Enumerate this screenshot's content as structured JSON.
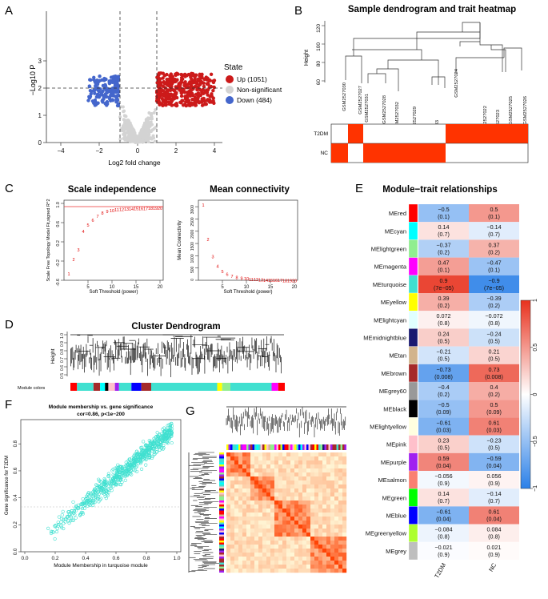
{
  "panels": {
    "a": {
      "letter": "A",
      "ylabel": "−Log10 P",
      "xlabel": "Log2 fold change",
      "xticks": [
        "−4",
        "−2",
        "0",
        "2",
        "4"
      ],
      "yticks": [
        "0",
        "1",
        "2",
        "3"
      ],
      "legend_title": "State",
      "legend": [
        {
          "label": "Up (1051)",
          "color": "#cc1a1a"
        },
        {
          "label": "Non-significant",
          "color": "#d3d3d3"
        },
        {
          "label": "Down (484)",
          "color": "#4466cc"
        }
      ]
    },
    "b": {
      "letter": "B",
      "title": "Sample dendrogram and trait heatmap",
      "ylabel": "Height",
      "yticks": [
        "120",
        "100",
        "80",
        "60"
      ],
      "samples": [
        "GSM2527030",
        "GSM2527027",
        "GSM2527031",
        "GSM2527028",
        "GSM2527032",
        "GSM2527029",
        "GSM2527033",
        "GSM2527024",
        "GSM2527022",
        "GSM2527023",
        "GSM2527025",
        "GSM2527026"
      ],
      "traits": [
        "T2DM",
        "NC"
      ]
    },
    "c": {
      "letter": "C",
      "title1": "Scale independence",
      "title2": "Mean connectivity",
      "ylabel1": "Scale Free Topology Model Fit,signed R^2",
      "ylabel2": "Mean Connectivity",
      "xlabel": "Soft Threshold (power)",
      "yticks1": [
        "-0.6",
        "-0.2",
        "0.2",
        "0.6",
        "1.0"
      ],
      "yticks2": [
        "0",
        "500",
        "1000",
        "1500",
        "2000",
        "2500",
        "3000"
      ],
      "xticks": [
        "5",
        "10",
        "15",
        "20"
      ]
    },
    "d": {
      "letter": "D",
      "title": "Cluster Dendrogram",
      "ylabel": "Height",
      "yticks": [
        "0.5",
        "0.6",
        "0.7",
        "0.8",
        "0.9",
        "1.0"
      ],
      "module_label": "Module colors"
    },
    "e": {
      "letter": "E",
      "title": "Module−trait relationships",
      "columns": [
        "T2DM",
        "NC"
      ],
      "scale_ticks": [
        "1",
        "0.5",
        "0",
        "−0.5",
        "−1"
      ]
    },
    "f": {
      "letter": "F",
      "title": "Module membership vs. gene significance",
      "subtitle": "cor=0.86, p<1e−200",
      "xlabel": "Module Membership in turquoise module",
      "ylabel": "Gene significance for T2DM",
      "xticks": [
        "0.0",
        "0.2",
        "0.4",
        "0.6",
        "0.8",
        "1.0"
      ],
      "yticks": [
        "0.0",
        "0.2",
        "0.4",
        "0.6",
        "0.8"
      ]
    },
    "g": {
      "letter": "G"
    }
  },
  "chart_data": [
    {
      "type": "table",
      "title": "Module−trait relationships",
      "columns": [
        "T2DM",
        "NC"
      ],
      "rows": [
        {
          "module": "MEred",
          "color": "#ff0000",
          "t2dm": "−0.5",
          "t2dm_p": "(0.1)",
          "nc": "0.5",
          "nc_p": "(0.1)",
          "v": -0.5
        },
        {
          "module": "MEcyan",
          "color": "#00ffff",
          "t2dm": "0.14",
          "t2dm_p": "(0.7)",
          "nc": "−0.14",
          "nc_p": "(0.7)",
          "v": 0.14
        },
        {
          "module": "MElightgreen",
          "color": "#90ee90",
          "t2dm": "−0.37",
          "t2dm_p": "(0.2)",
          "nc": "0.37",
          "nc_p": "(0.2)",
          "v": -0.37
        },
        {
          "module": "MEmagenta",
          "color": "#ff00ff",
          "t2dm": "0.47",
          "t2dm_p": "(0.1)",
          "nc": "−0.47",
          "nc_p": "(0.1)",
          "v": 0.47
        },
        {
          "module": "MEturquoise",
          "color": "#40e0d0",
          "t2dm": "0.9",
          "t2dm_p": "(7e−05)",
          "nc": "−0.9",
          "nc_p": "(7e−05)",
          "v": 0.9
        },
        {
          "module": "MEyellow",
          "color": "#ffff00",
          "t2dm": "0.39",
          "t2dm_p": "(0.2)",
          "nc": "−0.39",
          "nc_p": "(0.2)",
          "v": 0.39
        },
        {
          "module": "MElightcyan",
          "color": "#e0ffff",
          "t2dm": "0.072",
          "t2dm_p": "(0.8)",
          "nc": "−0.072",
          "nc_p": "(0.8)",
          "v": 0.072
        },
        {
          "module": "MEmidnightblue",
          "color": "#191970",
          "t2dm": "0.24",
          "t2dm_p": "(0.5)",
          "nc": "−0.24",
          "nc_p": "(0.5)",
          "v": 0.24
        },
        {
          "module": "MEtan",
          "color": "#d2b48c",
          "t2dm": "−0.21",
          "t2dm_p": "(0.5)",
          "nc": "0.21",
          "nc_p": "(0.5)",
          "v": -0.21
        },
        {
          "module": "MEbrown",
          "color": "#a52a2a",
          "t2dm": "−0.73",
          "t2dm_p": "(0.008)",
          "nc": "0.73",
          "nc_p": "(0.008)",
          "v": -0.73
        },
        {
          "module": "MEgrey60",
          "color": "#999999",
          "t2dm": "−0.4",
          "t2dm_p": "(0.2)",
          "nc": "0.4",
          "nc_p": "(0.2)",
          "v": -0.4
        },
        {
          "module": "MEblack",
          "color": "#000000",
          "t2dm": "−0.5",
          "t2dm_p": "(0.09)",
          "nc": "0.5",
          "nc_p": "(0.09)",
          "v": -0.5
        },
        {
          "module": "MElightyellow",
          "color": "#ffffe0",
          "t2dm": "−0.61",
          "t2dm_p": "(0.03)",
          "nc": "0.61",
          "nc_p": "(0.03)",
          "v": -0.61
        },
        {
          "module": "MEpink",
          "color": "#ffc0cb",
          "t2dm": "0.23",
          "t2dm_p": "(0.5)",
          "nc": "−0.23",
          "nc_p": "(0.5)",
          "v": 0.23
        },
        {
          "module": "MEpurple",
          "color": "#a020f0",
          "t2dm": "0.59",
          "t2dm_p": "(0.04)",
          "nc": "−0.59",
          "nc_p": "(0.04)",
          "v": 0.59
        },
        {
          "module": "MEsalmon",
          "color": "#fa8072",
          "t2dm": "−0.056",
          "t2dm_p": "(0.9)",
          "nc": "0.056",
          "nc_p": "(0.9)",
          "v": -0.056
        },
        {
          "module": "MEgreen",
          "color": "#00ff00",
          "t2dm": "0.14",
          "t2dm_p": "(0.7)",
          "nc": "−0.14",
          "nc_p": "(0.7)",
          "v": 0.14
        },
        {
          "module": "MEblue",
          "color": "#0000ff",
          "t2dm": "−0.61",
          "t2dm_p": "(0.04)",
          "nc": "0.61",
          "nc_p": "(0.04)",
          "v": -0.61
        },
        {
          "module": "MEgreenyellow",
          "color": "#adff2f",
          "t2dm": "−0.084",
          "t2dm_p": "(0.8)",
          "nc": "0.084",
          "nc_p": "(0.8)",
          "v": -0.084
        },
        {
          "module": "MEgrey",
          "color": "#bebebe",
          "t2dm": "−0.021",
          "t2dm_p": "(0.9)",
          "nc": "0.021",
          "nc_p": "(0.9)",
          "v": -0.021
        }
      ]
    },
    {
      "type": "scatter",
      "title": "Scale independence",
      "x": [
        1,
        2,
        3,
        4,
        5,
        6,
        7,
        8,
        9,
        10,
        11,
        12,
        13,
        14,
        15,
        16,
        17,
        18,
        19,
        20
      ],
      "values": [
        -0.5,
        -0.2,
        0.0,
        0.38,
        0.52,
        0.62,
        0.7,
        0.77,
        0.8,
        0.82,
        0.83,
        0.84,
        0.85,
        0.85,
        0.86,
        0.86,
        0.86,
        0.87,
        0.87,
        0.87
      ],
      "ylim": [
        -0.6,
        1.0
      ],
      "xlim": [
        0,
        20
      ],
      "threshold": 0.85
    },
    {
      "type": "scatter",
      "title": "Mean connectivity",
      "x": [
        1,
        2,
        3,
        4,
        5,
        6,
        7,
        8,
        9,
        10,
        11,
        12,
        13,
        14,
        15,
        16,
        17,
        18,
        19,
        20
      ],
      "values": [
        3100,
        1700,
        1000,
        600,
        400,
        280,
        200,
        150,
        110,
        90,
        70,
        60,
        50,
        40,
        35,
        30,
        25,
        22,
        20,
        18
      ],
      "ylim": [
        0,
        3200
      ],
      "xlim": [
        0,
        20
      ]
    }
  ]
}
